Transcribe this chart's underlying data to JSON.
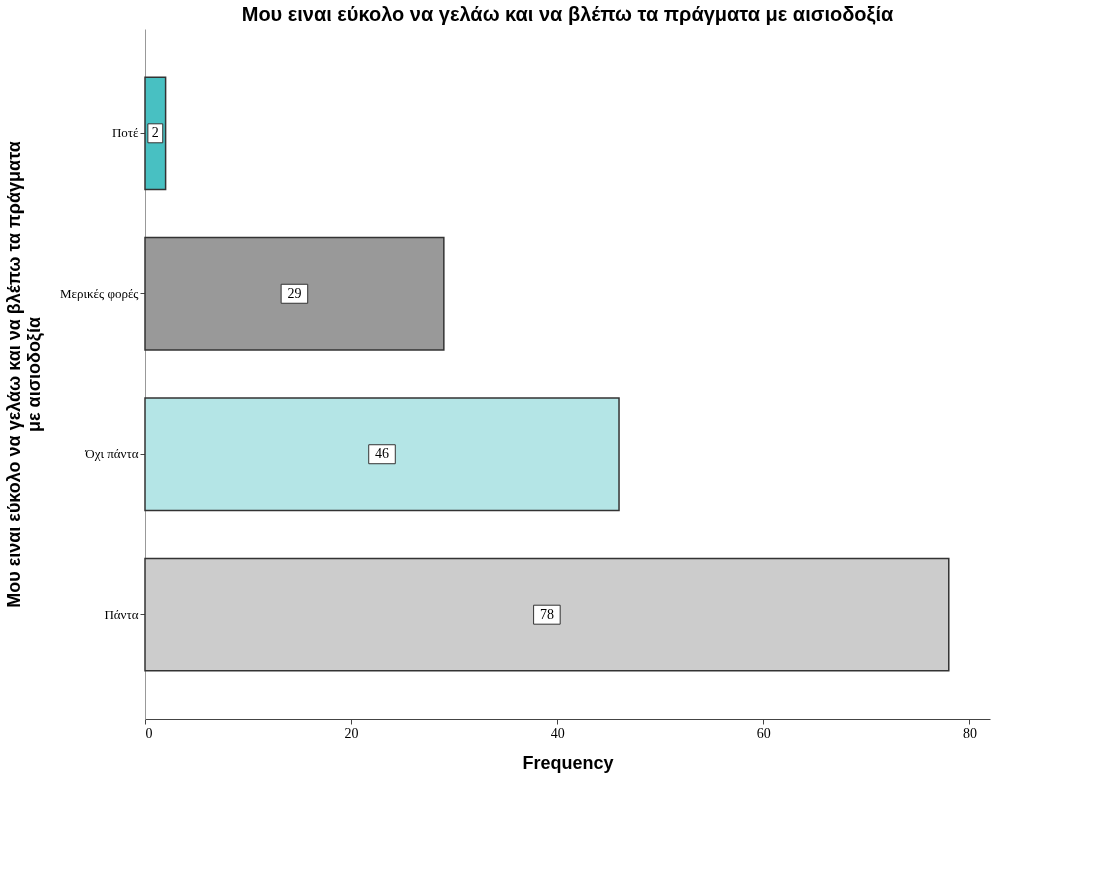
{
  "chart_data": {
    "type": "bar",
    "orientation": "horizontal",
    "title": "Μου ειναι εύκολο να γελάω και να βλέπω τα πράγματα με αισιοδοξία",
    "xlabel": "Frequency",
    "ylabel": "Μου ειναι εύκολο να γελάω και να βλέπω τα πράγματα\nμε αισιοδοξία",
    "categories": [
      "Ποτέ",
      "Μερικές φορές",
      "Όχι πάντα",
      "Πάντα"
    ],
    "values": [
      2,
      29,
      46,
      78
    ],
    "colors": [
      "#48c0c2",
      "#999999",
      "#b4e5e6",
      "#cccccc"
    ],
    "xlim": [
      0,
      82
    ],
    "xticks": [
      0,
      20,
      40,
      60,
      80
    ],
    "data_labels": true,
    "grid": false
  }
}
